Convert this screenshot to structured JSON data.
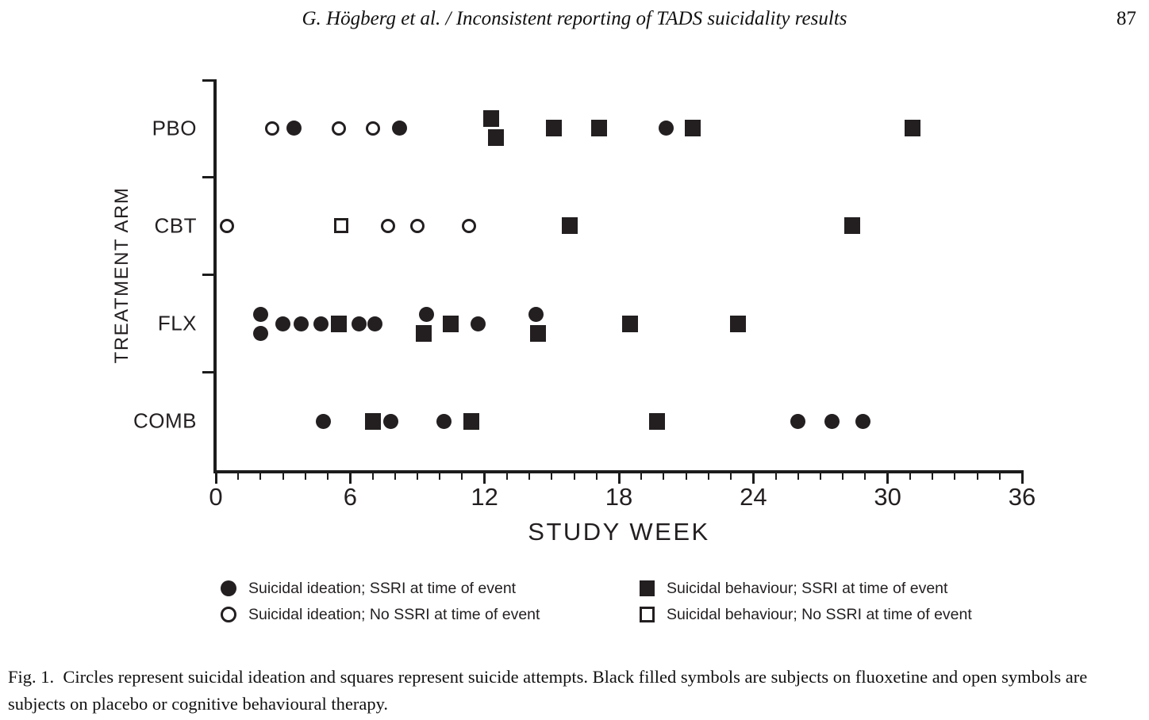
{
  "page": {
    "header": "G. Högberg et al. / Inconsistent reporting of TADS suicidality results",
    "page_number": "87",
    "caption": "Fig. 1.  Circles represent suicidal ideation and squares represent suicide attempts. Black filled symbols are subjects on fluoxetine and open symbols are subjects on placebo or cognitive behavioural therapy."
  },
  "chart_data": {
    "type": "scatter",
    "title": "",
    "xlabel": "STUDY WEEK",
    "ylabel": "TREATMENT ARM",
    "xlim": [
      0,
      36
    ],
    "x_major_ticks": [
      0,
      6,
      12,
      18,
      24,
      30,
      36
    ],
    "x_minor_tick_step": 1,
    "categories": [
      "PBO",
      "CBT",
      "FLX",
      "COMB"
    ],
    "grid": false,
    "legend_position": "below",
    "marker_color": "#231f20",
    "series": [
      {
        "marker": "filled-circle",
        "name": "Suicidal ideation; SSRI at time of event",
        "points": [
          {
            "arm": "PBO",
            "week": 3.5
          },
          {
            "arm": "PBO",
            "week": 8.2
          },
          {
            "arm": "PBO",
            "week": 20.1
          },
          {
            "arm": "FLX",
            "week": 2.0,
            "jitter": "up"
          },
          {
            "arm": "FLX",
            "week": 2.0,
            "jitter": "down"
          },
          {
            "arm": "FLX",
            "week": 3.0
          },
          {
            "arm": "FLX",
            "week": 3.8
          },
          {
            "arm": "FLX",
            "week": 4.7
          },
          {
            "arm": "FLX",
            "week": 6.4
          },
          {
            "arm": "FLX",
            "week": 7.1
          },
          {
            "arm": "FLX",
            "week": 9.4,
            "jitter": "up"
          },
          {
            "arm": "FLX",
            "week": 11.7
          },
          {
            "arm": "FLX",
            "week": 14.3,
            "jitter": "up"
          },
          {
            "arm": "COMB",
            "week": 4.8
          },
          {
            "arm": "COMB",
            "week": 7.8
          },
          {
            "arm": "COMB",
            "week": 10.2
          },
          {
            "arm": "COMB",
            "week": 26.0
          },
          {
            "arm": "COMB",
            "week": 27.5
          },
          {
            "arm": "COMB",
            "week": 28.9
          }
        ]
      },
      {
        "marker": "open-circle",
        "name": "Suicidal ideation; No SSRI at time of event",
        "points": [
          {
            "arm": "PBO",
            "week": 2.5
          },
          {
            "arm": "PBO",
            "week": 5.5
          },
          {
            "arm": "PBO",
            "week": 7.0
          },
          {
            "arm": "CBT",
            "week": 0.5
          },
          {
            "arm": "CBT",
            "week": 7.7
          },
          {
            "arm": "CBT",
            "week": 9.0
          },
          {
            "arm": "CBT",
            "week": 11.3
          }
        ]
      },
      {
        "marker": "filled-square",
        "name": "Suicidal behaviour; SSRI at time of event",
        "points": [
          {
            "arm": "PBO",
            "week": 12.3,
            "jitter": "up"
          },
          {
            "arm": "PBO",
            "week": 12.5,
            "jitter": "down"
          },
          {
            "arm": "PBO",
            "week": 15.1
          },
          {
            "arm": "PBO",
            "week": 17.1
          },
          {
            "arm": "PBO",
            "week": 21.3
          },
          {
            "arm": "PBO",
            "week": 31.1
          },
          {
            "arm": "CBT",
            "week": 15.8
          },
          {
            "arm": "CBT",
            "week": 28.4
          },
          {
            "arm": "FLX",
            "week": 5.5
          },
          {
            "arm": "FLX",
            "week": 9.3,
            "jitter": "down"
          },
          {
            "arm": "FLX",
            "week": 10.5
          },
          {
            "arm": "FLX",
            "week": 14.4,
            "jitter": "down"
          },
          {
            "arm": "FLX",
            "week": 18.5
          },
          {
            "arm": "FLX",
            "week": 23.3
          },
          {
            "arm": "COMB",
            "week": 7.0
          },
          {
            "arm": "COMB",
            "week": 11.4
          },
          {
            "arm": "COMB",
            "week": 19.7
          }
        ]
      },
      {
        "marker": "open-square",
        "name": "Suicidal behaviour; No SSRI at time of event",
        "points": [
          {
            "arm": "CBT",
            "week": 5.6
          }
        ]
      }
    ]
  }
}
